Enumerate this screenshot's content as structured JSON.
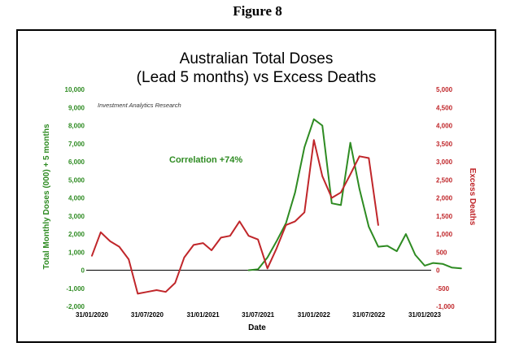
{
  "figure_label": "Figure 8",
  "chart_data": {
    "type": "line",
    "title_line1": "Australian Total Doses",
    "title_line2": "(Lead 5 months) vs Excess Deaths",
    "watermark": "Investment Analytics Research",
    "annotation": "Correlation +74%",
    "xlabel": "Date",
    "ylabel_left": "Total Monthly Doses (000) + 5 months",
    "ylabel_right": "Excess Deaths",
    "x_ticks": [
      "31/01/2020",
      "31/07/2020",
      "31/01/2021",
      "31/07/2021",
      "31/01/2022",
      "31/07/2022",
      "31/01/2023"
    ],
    "ylim_left": [
      -2000,
      10000
    ],
    "ylim_right": [
      -1000,
      5000
    ],
    "yticks_left": [
      "-2,000",
      "-1,000",
      "0",
      "1,000",
      "2,000",
      "3,000",
      "4,000",
      "5,000",
      "6,000",
      "7,000",
      "8,000",
      "9,000",
      "10,000"
    ],
    "yticks_right": [
      "-1,000",
      "-500",
      "0",
      "500",
      "1,000",
      "1,500",
      "2,000",
      "2,500",
      "3,000",
      "3,500",
      "4,000",
      "4,500",
      "5,000"
    ],
    "colors": {
      "doses": "#2e8b22",
      "deaths": "#c0262a",
      "zero_line": "#000000"
    },
    "series": [
      {
        "axis": "left",
        "x": [
          "2021-06-30",
          "2021-07-31",
          "2021-08-31",
          "2021-09-30",
          "2021-10-31",
          "2021-11-30",
          "2021-12-31",
          "2022-01-31",
          "2022-02-28",
          "2022-03-31",
          "2022-04-30",
          "2022-05-31",
          "2022-06-30",
          "2022-07-31",
          "2022-08-31",
          "2022-09-30",
          "2022-10-31",
          "2022-11-30",
          "2022-12-31",
          "2023-01-31",
          "2023-02-28",
          "2023-03-31",
          "2023-04-30",
          "2023-05-31"
        ],
        "values": [
          0,
          50,
          700,
          1600,
          2600,
          4300,
          6800,
          8350,
          8000,
          3700,
          3600,
          7050,
          4500,
          2400,
          1300,
          1350,
          1050,
          2000,
          850,
          250,
          400,
          350,
          150,
          100
        ]
      },
      {
        "axis": "right",
        "x": [
          "2020-01-31",
          "2020-02-29",
          "2020-03-31",
          "2020-04-30",
          "2020-05-31",
          "2020-06-30",
          "2020-07-31",
          "2020-08-31",
          "2020-09-30",
          "2020-10-31",
          "2020-11-30",
          "2020-12-31",
          "2021-01-31",
          "2021-02-28",
          "2021-03-31",
          "2021-04-30",
          "2021-05-31",
          "2021-06-30",
          "2021-07-31",
          "2021-08-31",
          "2021-09-30",
          "2021-10-31",
          "2021-11-30",
          "2021-12-31",
          "2022-01-31",
          "2022-02-28",
          "2022-03-31",
          "2022-04-30",
          "2022-05-31",
          "2022-06-30",
          "2022-07-31",
          "2022-08-31"
        ],
        "values": [
          400,
          1050,
          800,
          650,
          300,
          -650,
          -600,
          -550,
          -600,
          -350,
          350,
          700,
          750,
          550,
          900,
          950,
          1350,
          950,
          850,
          50,
          600,
          1250,
          1350,
          1600,
          3600,
          2600,
          2000,
          2150,
          2650,
          3150,
          3100,
          1250
        ]
      }
    ]
  }
}
